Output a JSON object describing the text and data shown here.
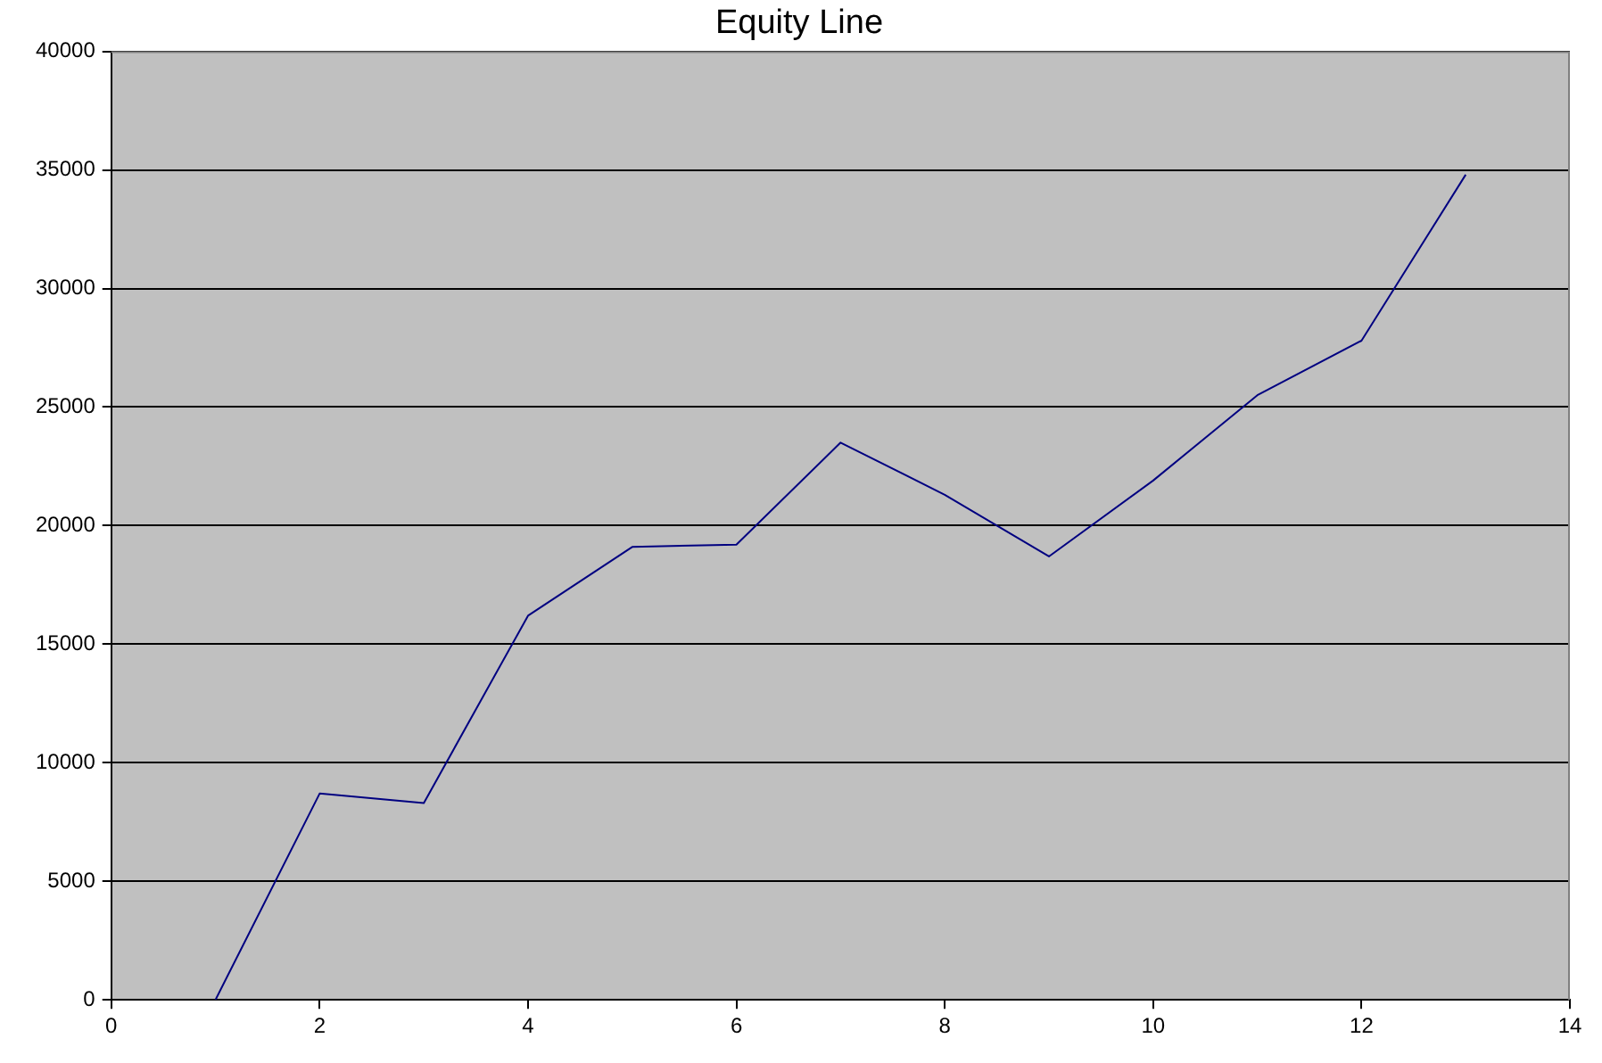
{
  "chart_data": {
    "type": "line",
    "title": "Equity Line",
    "x": [
      1,
      2,
      3,
      4,
      5,
      6,
      7,
      8,
      9,
      10,
      11,
      12,
      13
    ],
    "values": [
      0,
      8700,
      8300,
      16200,
      19100,
      19200,
      23500,
      21300,
      18700,
      21900,
      25500,
      27800,
      34800
    ],
    "color": "#000080",
    "xlim": [
      0,
      14
    ],
    "xticks": [
      0,
      2,
      4,
      6,
      8,
      10,
      12,
      14
    ],
    "ylim": [
      0,
      40000
    ],
    "yticks": [
      0,
      5000,
      10000,
      15000,
      20000,
      25000,
      30000,
      35000,
      40000
    ],
    "grid": "y",
    "legend": false,
    "marker": "none",
    "line_style": "solid"
  }
}
